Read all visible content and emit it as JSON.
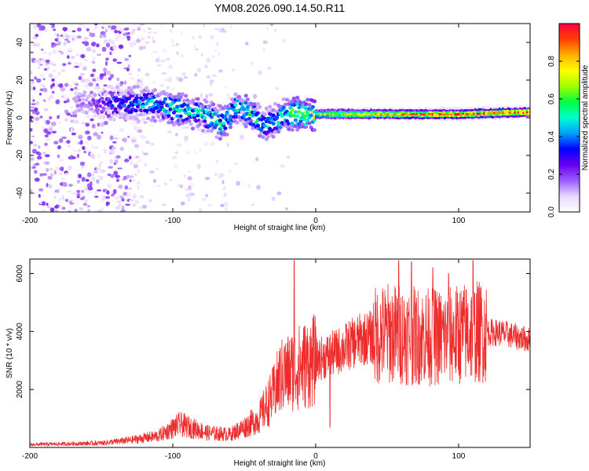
{
  "title": "YM08.2026.090.14.50.R11",
  "chart_data": [
    {
      "type": "heatmap",
      "name": "spectrogram",
      "xlabel": "Height of straight line (km)",
      "ylabel": "Frequency (Hz)",
      "xlim": [
        -200,
        150
      ],
      "ylim": [
        -50,
        50
      ],
      "xticks": [
        -200,
        -100,
        0,
        100
      ],
      "yticks": [
        -40,
        -20,
        0,
        20,
        40
      ],
      "colorbar": {
        "label": "Normalized spectral amplitude",
        "range": [
          0,
          1
        ],
        "ticks": [
          "0.0",
          "0.2",
          "0.4",
          "0.6",
          "0.8"
        ],
        "tick_values": [
          0.0,
          0.2,
          0.4,
          0.6,
          0.8
        ],
        "colors": [
          "#ffffff",
          "#e8d8ff",
          "#9a5cff",
          "#6a00f0",
          "#0000ff",
          "#00a0ff",
          "#00ffd0",
          "#00ff40",
          "#a0ff00",
          "#ffff00",
          "#ffb000",
          "#ff4000",
          "#ff0040"
        ]
      },
      "ridge": [
        {
          "x": -160,
          "f": 8,
          "a": 0.15
        },
        {
          "x": -140,
          "f": 8,
          "a": 0.35
        },
        {
          "x": -120,
          "f": 8,
          "a": 0.45
        },
        {
          "x": -100,
          "f": 5,
          "a": 0.5
        },
        {
          "x": -80,
          "f": 2,
          "a": 0.5
        },
        {
          "x": -65,
          "f": -3,
          "a": 0.55
        },
        {
          "x": -55,
          "f": 6,
          "a": 0.5
        },
        {
          "x": -45,
          "f": 2,
          "a": 0.55
        },
        {
          "x": -35,
          "f": -4,
          "a": 0.45
        },
        {
          "x": -20,
          "f": 2,
          "a": 0.55
        },
        {
          "x": 0,
          "f": 2,
          "a": 0.7
        },
        {
          "x": 50,
          "f": 2,
          "a": 0.85
        },
        {
          "x": 100,
          "f": 2,
          "a": 0.95
        },
        {
          "x": 150,
          "f": 3,
          "a": 0.9
        }
      ]
    },
    {
      "type": "line",
      "name": "snr",
      "xlabel": "Height of straight line (km)",
      "ylabel": "SNR (10 * v/v)",
      "xlim": [
        -200,
        150
      ],
      "ylim": [
        0,
        6500
      ],
      "xticks": [
        -200,
        -100,
        0,
        100
      ],
      "yticks": [
        2000,
        4000,
        6000
      ],
      "color": "#ee2c2c",
      "envelope": [
        {
          "x": -200,
          "y": 100
        },
        {
          "x": -150,
          "y": 150
        },
        {
          "x": -130,
          "y": 250
        },
        {
          "x": -110,
          "y": 400
        },
        {
          "x": -95,
          "y": 800
        },
        {
          "x": -85,
          "y": 650
        },
        {
          "x": -75,
          "y": 500
        },
        {
          "x": -60,
          "y": 450
        },
        {
          "x": -50,
          "y": 700
        },
        {
          "x": -40,
          "y": 1000
        },
        {
          "x": -30,
          "y": 1800
        },
        {
          "x": -25,
          "y": 2400
        },
        {
          "x": -15,
          "y": 2700
        },
        {
          "x": 0,
          "y": 3000
        },
        {
          "x": 15,
          "y": 3300
        },
        {
          "x": 30,
          "y": 3700
        },
        {
          "x": 50,
          "y": 3950
        },
        {
          "x": 70,
          "y": 3850
        },
        {
          "x": 90,
          "y": 3800
        },
        {
          "x": 110,
          "y": 4000
        },
        {
          "x": 130,
          "y": 3950
        },
        {
          "x": 150,
          "y": 3700
        }
      ],
      "spikes": [
        {
          "x": -15,
          "y": 6450
        },
        {
          "x": -22,
          "y": 3400
        },
        {
          "x": 10,
          "y": 700
        },
        {
          "x": 58,
          "y": 6450
        },
        {
          "x": 67,
          "y": 6400
        },
        {
          "x": 82,
          "y": 6200
        },
        {
          "x": 93,
          "y": 6000
        },
        {
          "x": 110,
          "y": 6450
        }
      ]
    }
  ]
}
